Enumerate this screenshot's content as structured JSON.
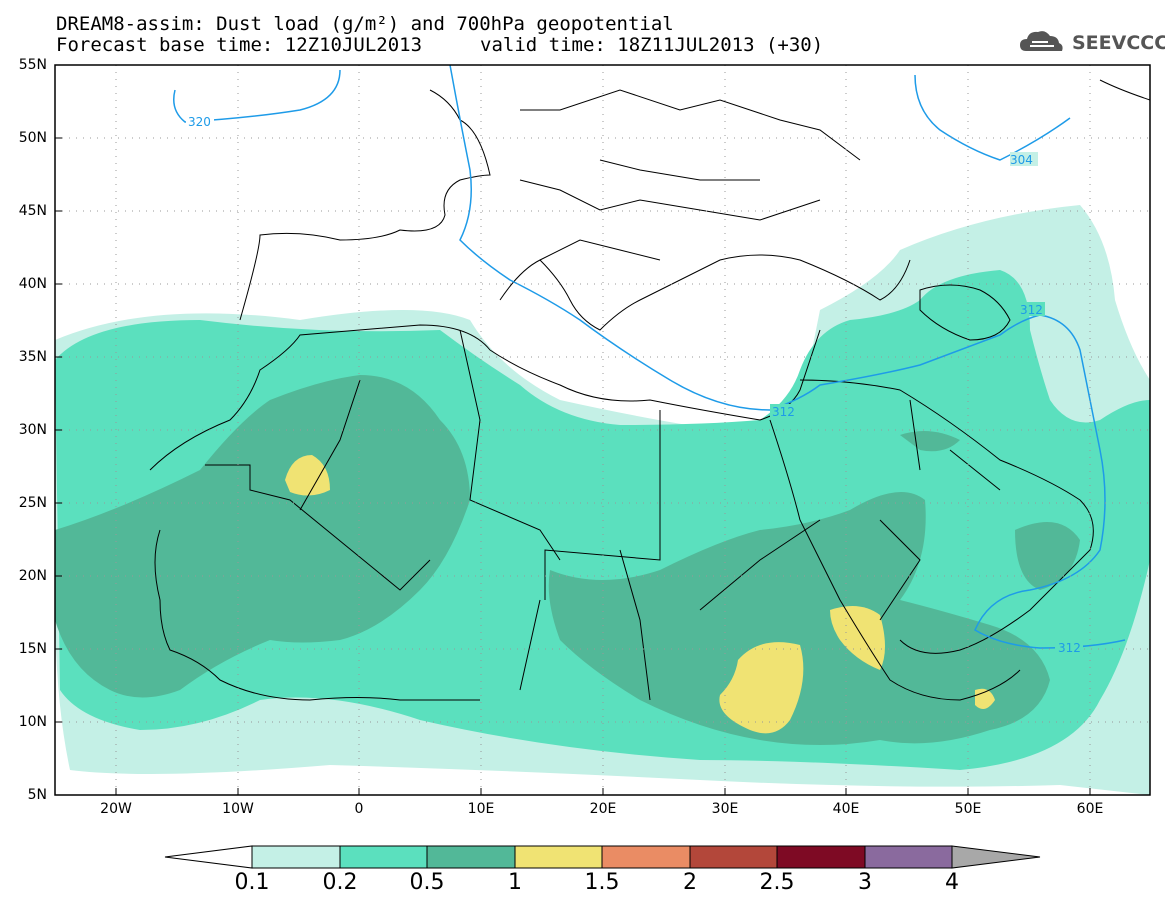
{
  "title": {
    "line1": "DREAM8-assim: Dust load (g/m²) and 700hPa geopotential",
    "line2": "Forecast base time: 12Z10JUL2013",
    "valid": "valid time: 18Z11JUL2013 (+30)"
  },
  "logo": {
    "text": "SEEVCCC",
    "icon": "cloud-icon"
  },
  "lat_labels": [
    "55N",
    "50N",
    "45N",
    "40N",
    "35N",
    "30N",
    "25N",
    "20N",
    "15N",
    "10N",
    "5N"
  ],
  "lon_labels": [
    "20W",
    "10W",
    "0",
    "10E",
    "20E",
    "30E",
    "40E",
    "50E",
    "60E"
  ],
  "contour_labels": [
    "320",
    "304",
    "312",
    "312",
    "312"
  ],
  "colorbar": {
    "labels": [
      "0.1",
      "0.2",
      "0.5",
      "1",
      "1.5",
      "2",
      "2.5",
      "3",
      "4"
    ],
    "colors": [
      "#c4f0e6",
      "#5be0be",
      "#52b898",
      "#f0e373",
      "#ea8c64",
      "#b3473a",
      "#7e0a24",
      "#8a6a9e",
      "#a8a8a8"
    ]
  },
  "map_colors": {
    "land_outline": "#000000",
    "contour": "#1e9be8",
    "grid": "#999999"
  }
}
